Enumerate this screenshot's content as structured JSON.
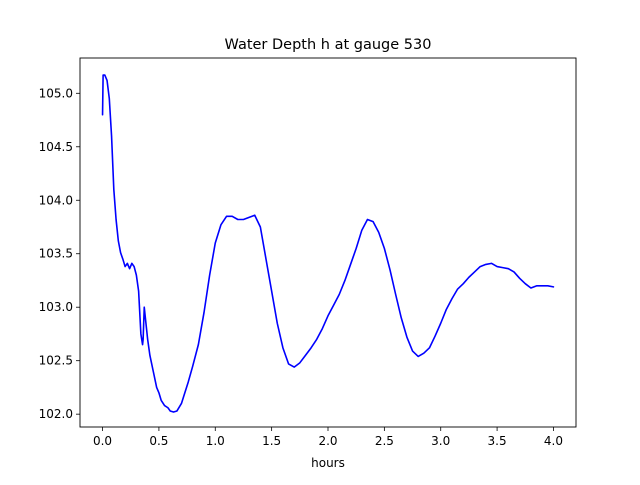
{
  "chart_data": {
    "type": "line",
    "title": "Water Depth h at gauge 530",
    "xlabel": "hours",
    "ylabel": "",
    "xlim": [
      -0.2,
      4.2
    ],
    "ylim": [
      101.88,
      105.33
    ],
    "xticks": [
      0.0,
      0.5,
      1.0,
      1.5,
      2.0,
      2.5,
      3.0,
      3.5,
      4.0
    ],
    "xtick_labels": [
      "0.0",
      "0.5",
      "1.0",
      "1.5",
      "2.0",
      "2.5",
      "3.0",
      "3.5",
      "4.0"
    ],
    "yticks": [
      102.0,
      102.5,
      103.0,
      103.5,
      104.0,
      104.5,
      105.0
    ],
    "ytick_labels": [
      "102.0",
      "102.5",
      "103.0",
      "103.5",
      "104.0",
      "104.5",
      "105.0"
    ],
    "grid": false,
    "legend": "none",
    "series": [
      {
        "color": "#0000ff",
        "x": [
          0.0,
          0.005,
          0.02,
          0.04,
          0.06,
          0.08,
          0.1,
          0.12,
          0.14,
          0.16,
          0.18,
          0.2,
          0.22,
          0.24,
          0.26,
          0.28,
          0.3,
          0.32,
          0.34,
          0.355,
          0.36,
          0.37,
          0.375,
          0.38,
          0.39,
          0.4,
          0.42,
          0.45,
          0.48,
          0.5,
          0.52,
          0.55,
          0.58,
          0.6,
          0.63,
          0.66,
          0.7,
          0.73,
          0.76,
          0.8,
          0.85,
          0.9,
          0.95,
          1.0,
          1.05,
          1.1,
          1.15,
          1.2,
          1.25,
          1.3,
          1.35,
          1.4,
          1.45,
          1.5,
          1.55,
          1.6,
          1.65,
          1.7,
          1.75,
          1.8,
          1.85,
          1.9,
          1.95,
          2.0,
          2.05,
          2.1,
          2.15,
          2.2,
          2.25,
          2.3,
          2.35,
          2.4,
          2.45,
          2.5,
          2.55,
          2.6,
          2.65,
          2.7,
          2.75,
          2.8,
          2.85,
          2.9,
          2.95,
          3.0,
          3.05,
          3.1,
          3.15,
          3.2,
          3.25,
          3.3,
          3.35,
          3.4,
          3.45,
          3.5,
          3.55,
          3.6,
          3.65,
          3.7,
          3.75,
          3.8,
          3.85,
          3.9,
          3.95,
          4.0
        ],
        "y": [
          104.8,
          105.17,
          105.17,
          105.12,
          104.95,
          104.6,
          104.1,
          103.82,
          103.62,
          103.51,
          103.45,
          103.38,
          103.41,
          103.36,
          103.41,
          103.38,
          103.3,
          103.15,
          102.75,
          102.65,
          102.7,
          103.0,
          102.95,
          102.9,
          102.8,
          102.7,
          102.55,
          102.4,
          102.25,
          102.2,
          102.13,
          102.08,
          102.06,
          102.03,
          102.02,
          102.03,
          102.1,
          102.2,
          102.3,
          102.45,
          102.65,
          102.95,
          103.3,
          103.6,
          103.77,
          103.85,
          103.85,
          103.82,
          103.82,
          103.84,
          103.86,
          103.75,
          103.45,
          103.15,
          102.85,
          102.62,
          102.47,
          102.44,
          102.48,
          102.55,
          102.62,
          102.7,
          102.8,
          102.92,
          103.02,
          103.12,
          103.25,
          103.4,
          103.55,
          103.72,
          103.82,
          103.8,
          103.7,
          103.55,
          103.35,
          103.12,
          102.9,
          102.72,
          102.59,
          102.54,
          102.57,
          102.62,
          102.73,
          102.85,
          102.98,
          103.08,
          103.17,
          103.22,
          103.28,
          103.33,
          103.38,
          103.4,
          103.41,
          103.38,
          103.37,
          103.36,
          103.33,
          103.27,
          103.22,
          103.18,
          103.2,
          103.2,
          103.2,
          103.19
        ]
      }
    ]
  }
}
